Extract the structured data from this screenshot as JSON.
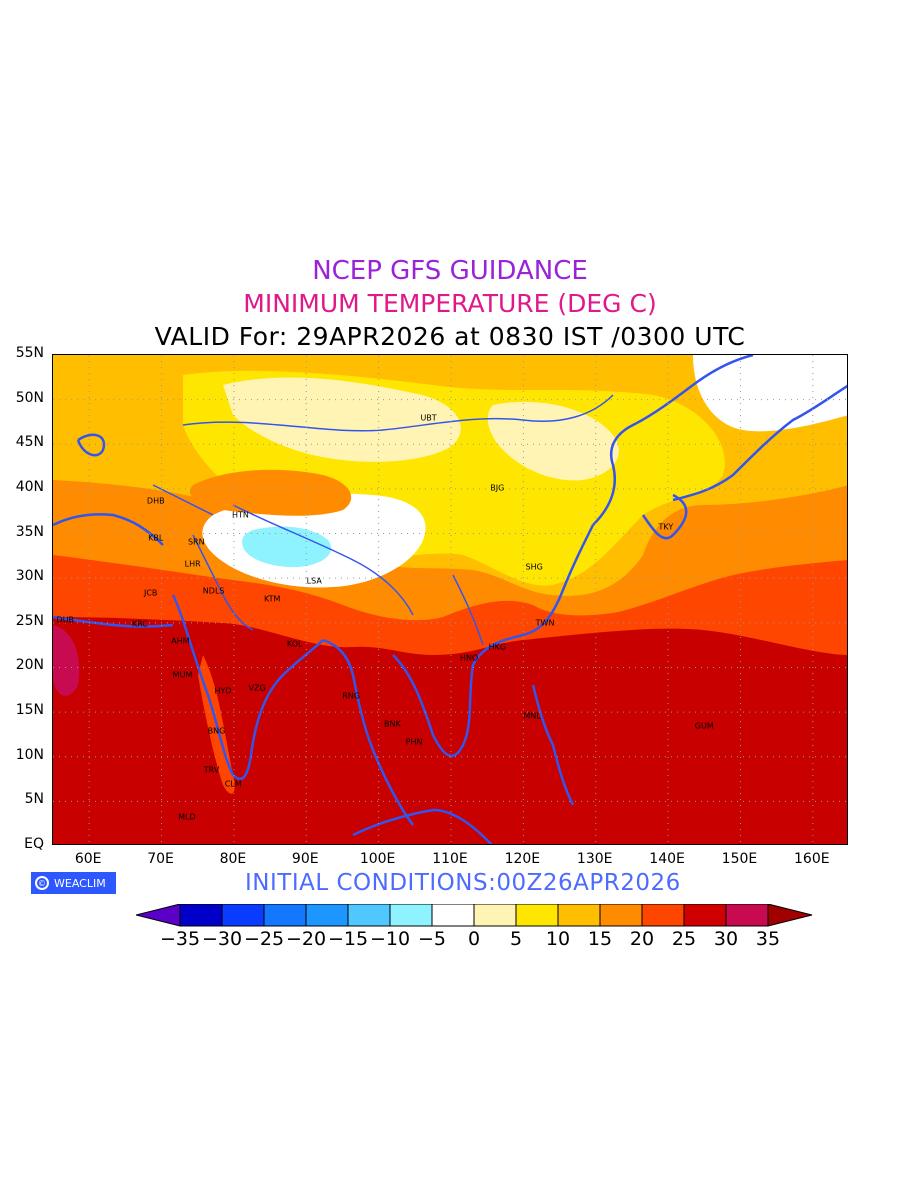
{
  "titles": {
    "line1": "NCEP GFS GUIDANCE",
    "line2": "MINIMUM TEMPERATURE (DEG C)",
    "line3": "VALID For: 29APR2026 at 0830 IST /0300 UTC"
  },
  "title_colors": {
    "line1": "#9a22d8",
    "line2": "#e0198a",
    "line3": "#000000"
  },
  "lat_labels": [
    "55N",
    "50N",
    "45N",
    "40N",
    "35N",
    "30N",
    "25N",
    "20N",
    "15N",
    "10N",
    "5N",
    "EQ"
  ],
  "lon_labels": [
    "60E",
    "70E",
    "80E",
    "90E",
    "100E",
    "110E",
    "120E",
    "130E",
    "140E",
    "150E",
    "160E"
  ],
  "cities": [
    {
      "name": "UBT",
      "lon": 106.9,
      "lat": 47.9
    },
    {
      "name": "BJG",
      "lon": 116.4,
      "lat": 40.1
    },
    {
      "name": "DHB",
      "lon": 69.2,
      "lat": 38.6
    },
    {
      "name": "HTN",
      "lon": 80.9,
      "lat": 37.1
    },
    {
      "name": "KBL",
      "lon": 69.2,
      "lat": 34.5
    },
    {
      "name": "SRN",
      "lon": 74.8,
      "lat": 34.1
    },
    {
      "name": "LHR",
      "lon": 74.3,
      "lat": 31.6
    },
    {
      "name": "TKY",
      "lon": 139.7,
      "lat": 35.7
    },
    {
      "name": "SHG",
      "lon": 121.5,
      "lat": 31.2
    },
    {
      "name": "LSA",
      "lon": 91.1,
      "lat": 29.7
    },
    {
      "name": "JCB",
      "lon": 68.5,
      "lat": 28.3
    },
    {
      "name": "NDLS",
      "lon": 77.2,
      "lat": 28.6
    },
    {
      "name": "KTM",
      "lon": 85.3,
      "lat": 27.7
    },
    {
      "name": "DUB",
      "lon": 56.7,
      "lat": 25.3
    },
    {
      "name": "KRC",
      "lon": 67.0,
      "lat": 24.9
    },
    {
      "name": "TWN",
      "lon": 123.0,
      "lat": 25.0
    },
    {
      "name": "AHM",
      "lon": 72.6,
      "lat": 23.0
    },
    {
      "name": "KOL",
      "lon": 88.4,
      "lat": 22.6
    },
    {
      "name": "HKG",
      "lon": 116.4,
      "lat": 22.3
    },
    {
      "name": "HNO",
      "lon": 112.5,
      "lat": 21.1
    },
    {
      "name": "MUM",
      "lon": 72.9,
      "lat": 19.1
    },
    {
      "name": "HYD",
      "lon": 78.5,
      "lat": 17.4
    },
    {
      "name": "VZG",
      "lon": 83.2,
      "lat": 17.7
    },
    {
      "name": "RNG",
      "lon": 96.2,
      "lat": 16.8
    },
    {
      "name": "MNL",
      "lon": 121.2,
      "lat": 14.6
    },
    {
      "name": "BNK",
      "lon": 101.9,
      "lat": 13.7
    },
    {
      "name": "GUM",
      "lon": 145.0,
      "lat": 13.4
    },
    {
      "name": "BNG",
      "lon": 77.6,
      "lat": 12.9
    },
    {
      "name": "PHN",
      "lon": 104.9,
      "lat": 11.6
    },
    {
      "name": "TRV",
      "lon": 76.9,
      "lat": 8.5
    },
    {
      "name": "CLM",
      "lon": 79.9,
      "lat": 6.9
    },
    {
      "name": "MLD",
      "lon": 73.5,
      "lat": 3.2
    }
  ],
  "map": {
    "lon_range": [
      55,
      165
    ],
    "lat_range": [
      0,
      55
    ],
    "gridlines": "dotted",
    "coastline_color": "#3355ee"
  },
  "logo": {
    "text": "WEACLIM",
    "mark": "©"
  },
  "initial_conditions": "INITIAL CONDITIONS:00Z26APR2026",
  "initial_color": "#4d6bff",
  "colorbar": {
    "labels": [
      "-35",
      "-30",
      "-25",
      "-20",
      "-15",
      "-10",
      "-5",
      "0",
      "5",
      "10",
      "15",
      "20",
      "25",
      "30",
      "35"
    ],
    "colors": [
      "#0000c8",
      "#0a3cff",
      "#1478ff",
      "#1e96ff",
      "#50c8ff",
      "#8ef2ff",
      "#ffffff",
      "#fff4b4",
      "#ffe600",
      "#ffbe00",
      "#ff8c00",
      "#ff4600",
      "#d10000",
      "#c80a50"
    ],
    "under_color": "#5a00c8",
    "over_color": "#a00000"
  }
}
